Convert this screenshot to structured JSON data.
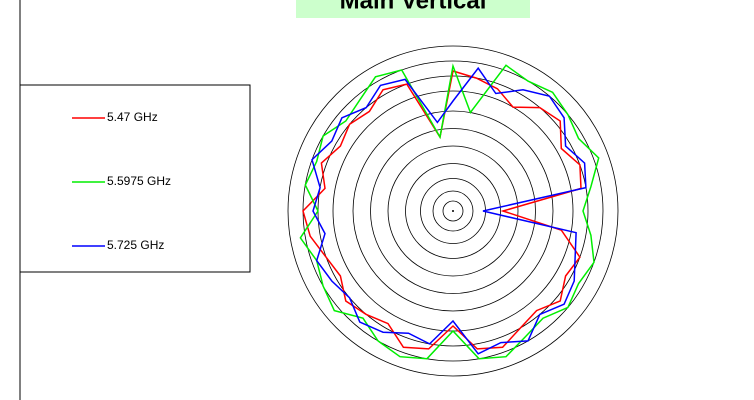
{
  "chart_data": {
    "type": "polar",
    "title": "Main Vertical",
    "theta": [
      0,
      10,
      20,
      30,
      40,
      50,
      60,
      70,
      80,
      90,
      100,
      110,
      120,
      130,
      140,
      150,
      160,
      170,
      180,
      190,
      200,
      210,
      220,
      230,
      240,
      250,
      260,
      270,
      280,
      290,
      300,
      310,
      320,
      330,
      340,
      350
    ],
    "rlim": [
      0,
      33
    ],
    "rticks": [
      2,
      4,
      6.5,
      9.5,
      13,
      16.5,
      20,
      24,
      27,
      30,
      33
    ],
    "series": [
      {
        "name": "5.47 GHz",
        "color": "#ff0000",
        "values": [
          10,
          26,
          27,
          25,
          28,
          27,
          24,
          26,
          27,
          28,
          15,
          27,
          28,
          26,
          27,
          26,
          28,
          26,
          30,
          29,
          27,
          26,
          28,
          27,
          26,
          29,
          28,
          23,
          28,
          29,
          27,
          26,
          28,
          26,
          27,
          22
        ]
      },
      {
        "name": "5.5975 GHz",
        "color": "#00ee00",
        "values": [
          26,
          28,
          31,
          29,
          30,
          31,
          30,
          31,
          20,
          29,
          15,
          30,
          31,
          29,
          28,
          30,
          29,
          30,
          27,
          31,
          29,
          30,
          31,
          28,
          30,
          31,
          30,
          24,
          30,
          31,
          29,
          28,
          30,
          29,
          30,
          28
        ]
      },
      {
        "name": "5.725 GHz",
        "color": "#0000ff",
        "values": [
          6,
          27,
          28,
          26,
          29,
          30,
          28,
          25,
          29,
          22,
          18,
          28,
          29,
          27,
          29,
          28,
          30,
          27,
          28,
          26,
          29,
          28,
          27,
          29,
          28,
          26,
          27,
          22,
          29,
          28,
          30,
          27,
          29,
          28,
          26,
          25
        ]
      }
    ]
  }
}
